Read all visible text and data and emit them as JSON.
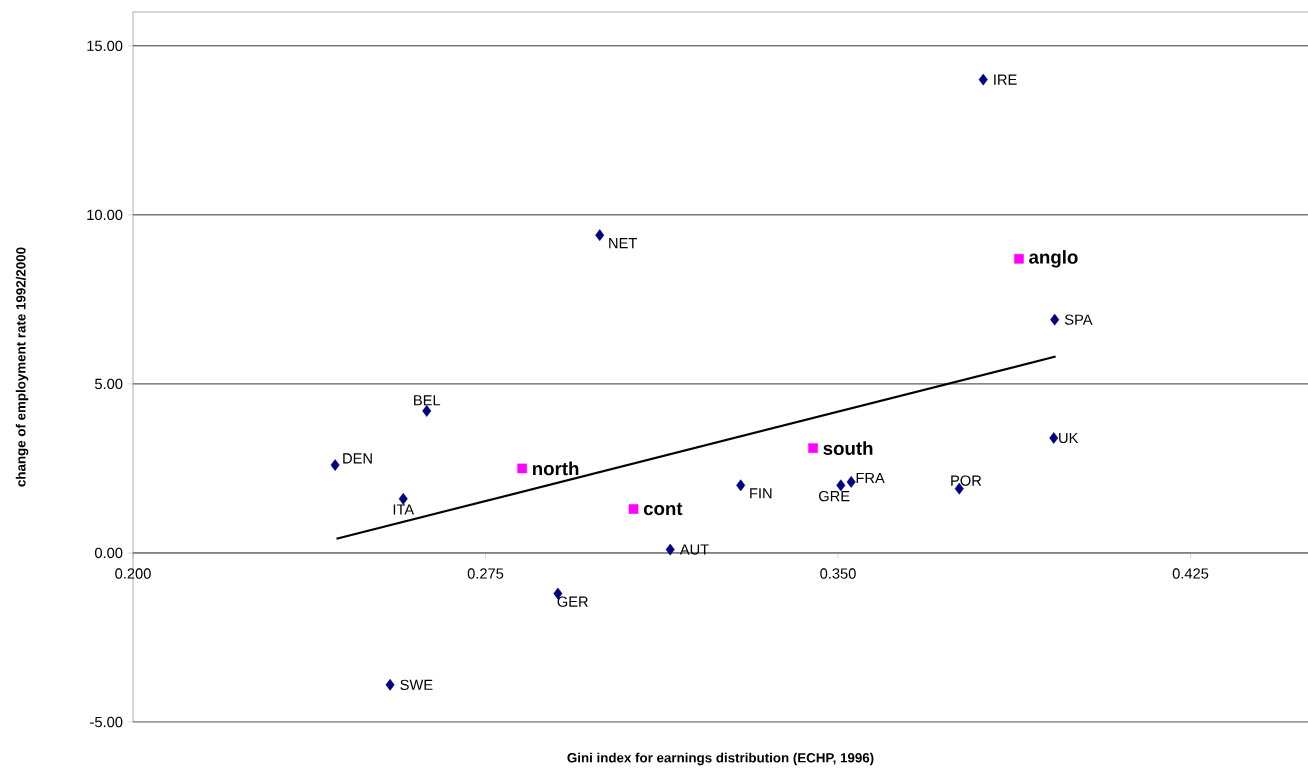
{
  "chart_data": {
    "type": "scatter",
    "xlabel": "Gini index for earnings distribution (ECHP, 1996)",
    "ylabel": "change of employment rate 1992/2000",
    "xlim": [
      0.2,
      0.45
    ],
    "ylim": [
      -5,
      16
    ],
    "xticks": [
      {
        "value": 0.2,
        "label": "0.200"
      },
      {
        "value": 0.275,
        "label": "0.275"
      },
      {
        "value": 0.35,
        "label": "0.350"
      },
      {
        "value": 0.425,
        "label": "0.425"
      }
    ],
    "yticks": [
      {
        "value": -5,
        "label": "-5.00"
      },
      {
        "value": 0,
        "label": "0.00"
      },
      {
        "value": 5,
        "label": "5.00"
      },
      {
        "value": 10,
        "label": "10.00"
      },
      {
        "value": 15,
        "label": "15.00"
      }
    ],
    "grid": "y",
    "series": [
      {
        "color": "#000080",
        "marker": "diamond",
        "x": [
          0.243,
          0.2625,
          0.2575,
          0.2547,
          0.2904,
          0.2993,
          0.3143,
          0.3293,
          0.3506,
          0.3528,
          0.3758,
          0.3809,
          0.3961,
          0.3959
        ],
        "values": [
          2.6,
          4.2,
          1.6,
          -3.9,
          -1.2,
          9.4,
          0.1,
          2.0,
          2.0,
          2.1,
          1.9,
          14.0,
          6.9,
          3.4
        ]
      },
      {
        "color": "#ff00ff",
        "marker": "square",
        "x": [
          0.2828,
          0.3065,
          0.3447,
          0.3885
        ],
        "values": [
          2.5,
          1.3,
          3.1,
          8.7
        ]
      },
      {
        "type": "line",
        "color": "#000000",
        "marker": "none",
        "line_style": "solid",
        "x": [
          0.2433,
          0.3963
        ],
        "values": [
          0.42,
          5.81
        ]
      }
    ],
    "annotations": [
      {
        "text": "DEN",
        "x": 0.243,
        "y": 2.6
      },
      {
        "text": "BEL",
        "x": 0.2625,
        "y": 4.2
      },
      {
        "text": "ITA",
        "x": 0.2575,
        "y": 1.6
      },
      {
        "text": "SWE",
        "x": 0.2547,
        "y": -3.9
      },
      {
        "text": "GER",
        "x": 0.2904,
        "y": -1.2
      },
      {
        "text": "NET",
        "x": 0.2993,
        "y": 9.4
      },
      {
        "text": "AUT",
        "x": 0.3143,
        "y": 0.1
      },
      {
        "text": "FIN",
        "x": 0.3293,
        "y": 2.0
      },
      {
        "text": "GRE",
        "x": 0.3506,
        "y": 2.0
      },
      {
        "text": "FRA",
        "x": 0.3528,
        "y": 2.1
      },
      {
        "text": "POR",
        "x": 0.3758,
        "y": 1.9
      },
      {
        "text": "IRE",
        "x": 0.3809,
        "y": 14.0
      },
      {
        "text": "SPA",
        "x": 0.3961,
        "y": 6.9
      },
      {
        "text": "UK",
        "x": 0.3959,
        "y": 3.4
      },
      {
        "text": "north",
        "x": 0.2828,
        "y": 2.5
      },
      {
        "text": "cont",
        "x": 0.3065,
        "y": 1.3
      },
      {
        "text": "south",
        "x": 0.3447,
        "y": 3.1
      },
      {
        "text": "anglo",
        "x": 0.3885,
        "y": 8.7
      }
    ]
  }
}
